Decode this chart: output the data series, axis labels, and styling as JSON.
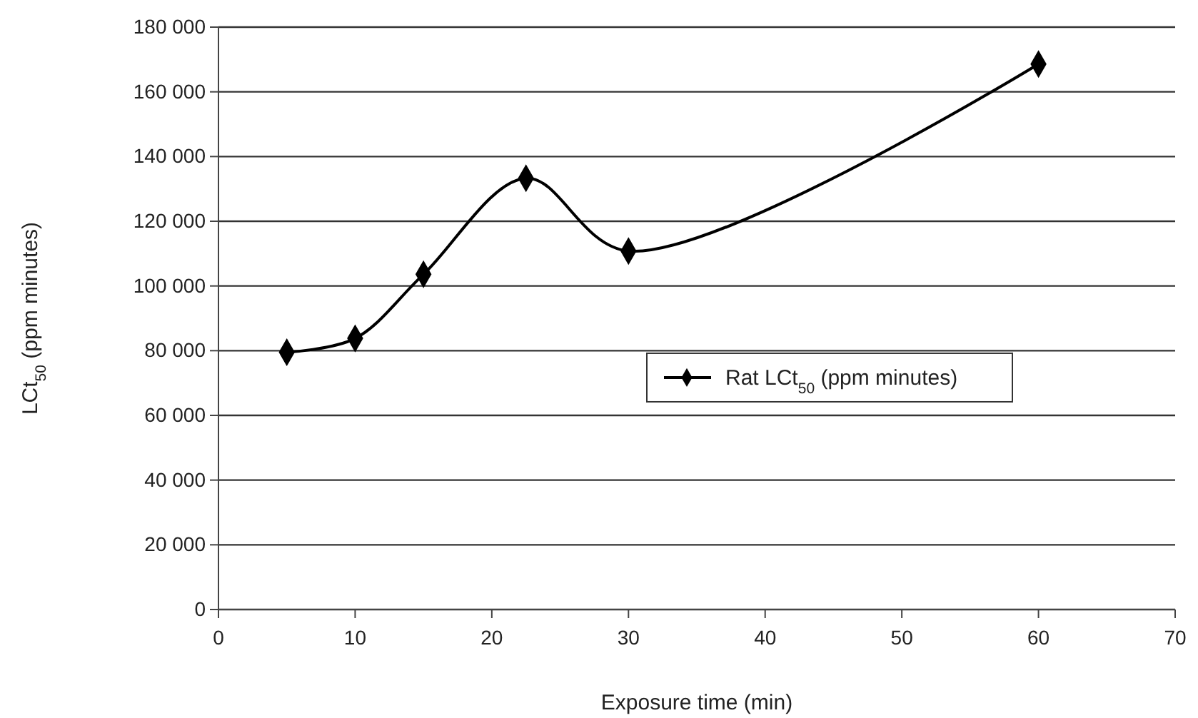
{
  "chart_data": {
    "type": "line",
    "xlabel": "Exposure time (min)",
    "ylabel": "LCt$_{50}$ (ppm minutes)",
    "x": [
      5,
      10,
      15,
      22.5,
      30,
      60
    ],
    "series": [
      {
        "name": "Rat LCt$_{50}$ (ppm minutes)",
        "color": "#000000",
        "values": [
          79500,
          83800,
          103600,
          133300,
          110800,
          168600
        ]
      }
    ],
    "xlim": [
      0,
      70
    ],
    "xticks": [
      0,
      10,
      20,
      30,
      40,
      50,
      60,
      70
    ],
    "ylim": [
      0,
      180000
    ],
    "yticks": [
      {
        "value": 0,
        "label": "0"
      },
      {
        "value": 20000,
        "label": "20 000"
      },
      {
        "value": 40000,
        "label": "40 000"
      },
      {
        "value": 60000,
        "label": "60 000"
      },
      {
        "value": 80000,
        "label": "80 000"
      },
      {
        "value": 100000,
        "label": "100 000"
      },
      {
        "value": 120000,
        "label": "120 000"
      },
      {
        "value": 140000,
        "label": "140 000"
      },
      {
        "value": 160000,
        "label": "160 000"
      },
      {
        "value": 180000,
        "label": "180 000"
      }
    ],
    "grid": "y",
    "legend": "right",
    "marker": "diamond",
    "line_style": "solid"
  }
}
